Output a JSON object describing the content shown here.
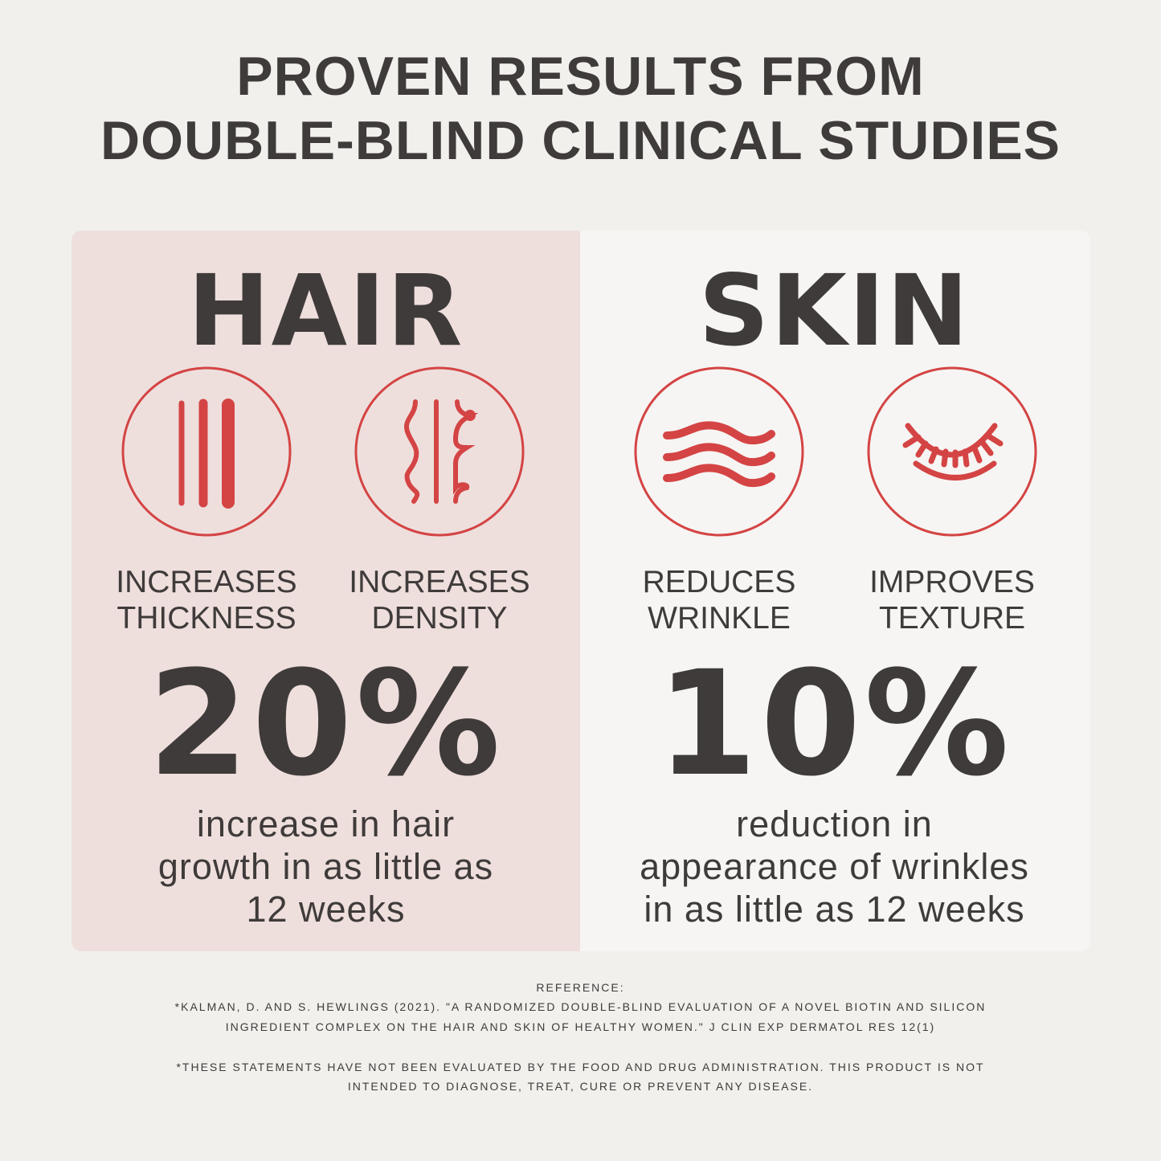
{
  "title": {
    "line1": "PROVEN RESULTS FROM",
    "line2": "DOUBLE-BLIND CLINICAL STUDIES"
  },
  "colors": {
    "accent": "#d44444",
    "text": "#3f3b3a",
    "hair_panel": "#eedfdd",
    "skin_panel": "#f6f5f3",
    "background": "#f1f0ed"
  },
  "hair": {
    "heading": "HAIR",
    "benefits": [
      {
        "icon": "hair-strands-thickness-icon",
        "line1": "INCREASES",
        "line2": "THICKNESS"
      },
      {
        "icon": "wavy-hair-density-icon",
        "line1": "INCREASES",
        "line2": "DENSITY"
      }
    ],
    "stat": "20%",
    "description": {
      "line1": "increase in hair",
      "line2": "growth in as little as",
      "line3": "12 weeks"
    }
  },
  "skin": {
    "heading": "SKIN",
    "benefits": [
      {
        "icon": "wrinkle-waves-icon",
        "line1": "REDUCES",
        "line2": "WRINKLE"
      },
      {
        "icon": "closed-eye-lashes-icon",
        "line1": "IMPROVES",
        "line2": "TEXTURE"
      }
    ],
    "stat": "10%",
    "description": {
      "line1": "reduction in",
      "line2": "appearance of wrinkles",
      "line3": "in as little as 12 weeks"
    }
  },
  "footer": {
    "reference_label": "REFERENCE:",
    "reference_line1": "*KALMAN, D. AND S. HEWLINGS (2021). \"A RANDOMIZED DOUBLE-BLIND EVALUATION OF A NOVEL BIOTIN AND SILICON",
    "reference_line2": "INGREDIENT COMPLEX ON THE HAIR AND SKIN OF HEALTHY WOMEN.\" J CLIN EXP DERMATOL RES 12(1)",
    "disclaimer_line1": "*THESE STATEMENTS HAVE NOT BEEN EVALUATED BY THE FOOD AND DRUG ADMINISTRATION. THIS PRODUCT IS NOT",
    "disclaimer_line2": "INTENDED TO DIAGNOSE, TREAT, CURE OR PREVENT ANY DISEASE."
  }
}
